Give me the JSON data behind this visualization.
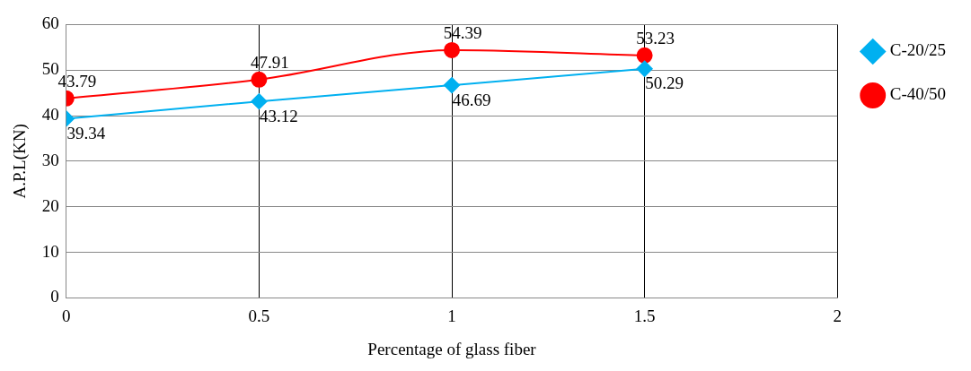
{
  "chart_data": {
    "type": "line",
    "xlabel": "Percentage of glass fiber",
    "ylabel": "A.P.L(KN)",
    "x": [
      0,
      0.5,
      1,
      1.5
    ],
    "series": [
      {
        "name": "C-20/25",
        "color": "#00b0f0",
        "values": [
          39.34,
          43.12,
          46.69,
          50.29
        ],
        "marker": "diamond"
      },
      {
        "name": "C-40/50",
        "color": "#ff0000",
        "values": [
          43.79,
          47.91,
          54.39,
          53.23
        ],
        "marker": "circle"
      }
    ],
    "xlim": [
      0,
      2
    ],
    "xticks": [
      0,
      0.5,
      1,
      1.5,
      2
    ],
    "ylim": [
      0,
      60
    ],
    "yticks": [
      0,
      10,
      20,
      30,
      40,
      50,
      60
    ],
    "grid": true,
    "legend": "right",
    "data_labels": true
  }
}
